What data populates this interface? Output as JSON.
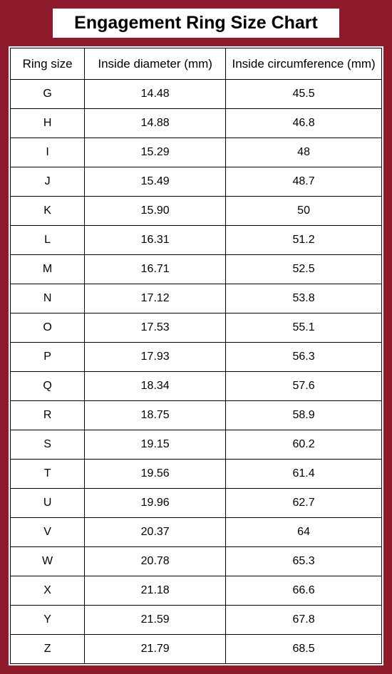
{
  "title": "Engagement Ring Size Chart",
  "background_color": "#8e1b2c",
  "table_bg": "#ffffff",
  "border_color": "#000000",
  "text_color": "#000000",
  "header_fontsize": 17,
  "cell_fontsize": 16,
  "title_fontsize": 25,
  "columns": [
    "Ring size",
    "Inside diameter (mm)",
    "Inside circumference (mm)"
  ],
  "column_widths_pct": [
    20,
    38,
    42
  ],
  "rows": [
    {
      "size": "G",
      "diameter": "14.48",
      "circ": "45.5"
    },
    {
      "size": "H",
      "diameter": "14.88",
      "circ": "46.8"
    },
    {
      "size": "I",
      "diameter": "15.29",
      "circ": "48"
    },
    {
      "size": "J",
      "diameter": "15.49",
      "circ": "48.7"
    },
    {
      "size": "K",
      "diameter": "15.90",
      "circ": "50"
    },
    {
      "size": "L",
      "diameter": "16.31",
      "circ": "51.2"
    },
    {
      "size": "M",
      "diameter": "16.71",
      "circ": "52.5"
    },
    {
      "size": "N",
      "diameter": "17.12",
      "circ": "53.8"
    },
    {
      "size": "O",
      "diameter": "17.53",
      "circ": "55.1"
    },
    {
      "size": "P",
      "diameter": "17.93",
      "circ": "56.3"
    },
    {
      "size": "Q",
      "diameter": "18.34",
      "circ": "57.6"
    },
    {
      "size": "R",
      "diameter": "18.75",
      "circ": "58.9"
    },
    {
      "size": "S",
      "diameter": "19.15",
      "circ": "60.2"
    },
    {
      "size": "T",
      "diameter": "19.56",
      "circ": "61.4"
    },
    {
      "size": "U",
      "diameter": "19.96",
      "circ": "62.7"
    },
    {
      "size": "V",
      "diameter": "20.37",
      "circ": "64"
    },
    {
      "size": "W",
      "diameter": "20.78",
      "circ": "65.3"
    },
    {
      "size": "X",
      "diameter": "21.18",
      "circ": "66.6"
    },
    {
      "size": "Y",
      "diameter": "21.59",
      "circ": "67.8"
    },
    {
      "size": "Z",
      "diameter": "21.79",
      "circ": "68.5"
    }
  ]
}
